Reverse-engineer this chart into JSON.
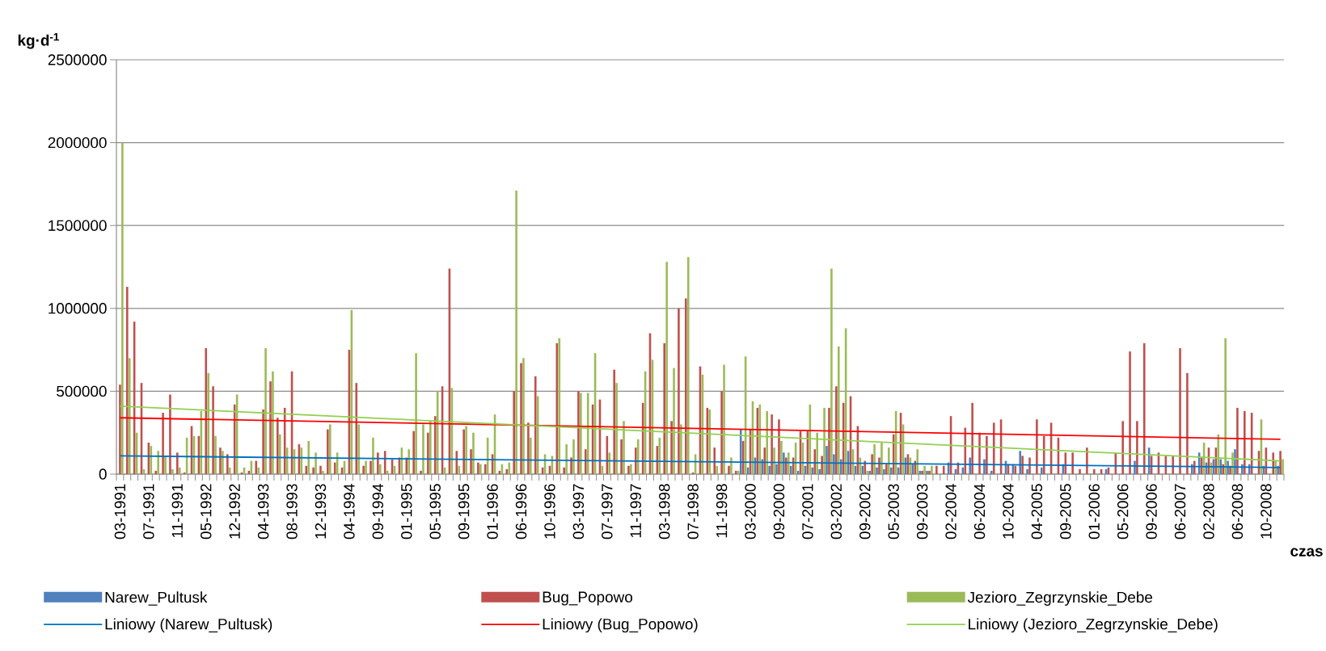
{
  "chart_data": {
    "type": "bar",
    "ylabel": "kg·d$^{-1}$",
    "xlabel": "czas",
    "categories": [
      "03-1991",
      null,
      null,
      null,
      "07-1991",
      null,
      null,
      null,
      "11-1991",
      null,
      null,
      null,
      "05-1992",
      null,
      null,
      null,
      "12-1992",
      null,
      null,
      null,
      "04-1993",
      null,
      null,
      null,
      "08-1993",
      null,
      null,
      null,
      "12-1993",
      null,
      null,
      null,
      "04-1994",
      null,
      null,
      null,
      "09-1994",
      null,
      null,
      null,
      "01-1995",
      null,
      null,
      null,
      "05-1995",
      null,
      null,
      null,
      "09-1995",
      null,
      null,
      null,
      "01-1996",
      null,
      null,
      null,
      "06-1996",
      null,
      null,
      null,
      "10-1996",
      null,
      null,
      null,
      "03-1997",
      null,
      null,
      null,
      "07-1997",
      null,
      null,
      null,
      "11-1997",
      null,
      null,
      null,
      "03-1998",
      null,
      null,
      null,
      "07-1998",
      null,
      null,
      null,
      "11-1998",
      null,
      null,
      null,
      "03-2000",
      null,
      null,
      null,
      "09-2000",
      null,
      null,
      null,
      "07-2001",
      null,
      null,
      null,
      "03-2002",
      null,
      null,
      null,
      "09-2002",
      null,
      null,
      null,
      "05-2003",
      null,
      null,
      null,
      "09-2003",
      null,
      null,
      null,
      "02-2004",
      null,
      null,
      null,
      "06-2004",
      null,
      null,
      null,
      "10-2004",
      null,
      null,
      null,
      "04-2005",
      null,
      null,
      null,
      "09-2005",
      null,
      null,
      null,
      "01-2006",
      null,
      null,
      null,
      "05-2006",
      null,
      null,
      null,
      "09-2006",
      null,
      null,
      null,
      "06-2007",
      null,
      null,
      null,
      "02-2008",
      null,
      null,
      null,
      "06-2008",
      null,
      null,
      null,
      "10-2008",
      null,
      null
    ],
    "series": [
      {
        "name": "Narew_Pultusk",
        "color": "#4f81bd",
        "values": [
          null,
          null,
          null,
          null,
          null,
          null,
          null,
          null,
          null,
          null,
          null,
          null,
          null,
          null,
          null,
          null,
          null,
          null,
          null,
          null,
          null,
          null,
          null,
          null,
          null,
          null,
          null,
          null,
          null,
          null,
          null,
          null,
          null,
          null,
          null,
          null,
          null,
          null,
          null,
          null,
          null,
          null,
          null,
          null,
          null,
          null,
          null,
          null,
          null,
          null,
          null,
          null,
          null,
          null,
          null,
          null,
          null,
          null,
          null,
          null,
          null,
          null,
          null,
          null,
          null,
          null,
          null,
          null,
          null,
          null,
          null,
          null,
          null,
          null,
          null,
          null,
          null,
          null,
          null,
          null,
          null,
          null,
          null,
          null,
          null,
          null,
          null,
          270000,
          40000,
          100000,
          90000,
          50000,
          60000,
          130000,
          50000,
          20000,
          50000,
          40000,
          30000,
          170000,
          120000,
          90000,
          140000,
          50000,
          50000,
          20000,
          40000,
          30000,
          40000,
          40000,
          100000,
          60000,
          20000,
          20000,
          null,
          null,
          70000,
          30000,
          40000,
          100000,
          null,
          90000,
          20000,
          null,
          80000,
          60000,
          140000,
          30000,
          null,
          40000,
          null,
          null,
          60000,
          null,
          null,
          null,
          null,
          null,
          30000,
          null,
          null,
          null,
          80000,
          null,
          160000,
          null,
          null,
          null,
          null,
          null,
          60000,
          130000,
          70000,
          90000,
          90000,
          80000,
          150000,
          60000,
          60000,
          null,
          50000,
          null,
          50000
        ]
      },
      {
        "name": "Bug_Popowo",
        "color": "#c0504d",
        "values": [
          540000,
          1130000,
          920000,
          550000,
          190000,
          20000,
          370000,
          480000,
          130000,
          10000,
          290000,
          230000,
          760000,
          530000,
          160000,
          120000,
          420000,
          10000,
          20000,
          80000,
          390000,
          560000,
          340000,
          400000,
          620000,
          180000,
          50000,
          40000,
          50000,
          270000,
          70000,
          40000,
          750000,
          550000,
          50000,
          80000,
          130000,
          140000,
          90000,
          100000,
          100000,
          260000,
          20000,
          250000,
          350000,
          530000,
          1240000,
          140000,
          270000,
          150000,
          70000,
          60000,
          120000,
          20000,
          30000,
          500000,
          670000,
          310000,
          590000,
          40000,
          50000,
          790000,
          40000,
          100000,
          500000,
          150000,
          420000,
          450000,
          230000,
          630000,
          210000,
          50000,
          160000,
          430000,
          850000,
          170000,
          790000,
          320000,
          1000000,
          1060000,
          10000,
          650000,
          400000,
          160000,
          500000,
          50000,
          20000,
          200000,
          270000,
          400000,
          160000,
          360000,
          330000,
          100000,
          100000,
          260000,
          260000,
          150000,
          110000,
          400000,
          530000,
          430000,
          470000,
          290000,
          80000,
          120000,
          100000,
          60000,
          240000,
          370000,
          120000,
          80000,
          20000,
          20000,
          50000,
          50000,
          350000,
          70000,
          280000,
          430000,
          250000,
          230000,
          310000,
          330000,
          60000,
          50000,
          110000,
          100000,
          330000,
          230000,
          310000,
          220000,
          130000,
          130000,
          30000,
          160000,
          30000,
          30000,
          40000,
          130000,
          320000,
          740000,
          320000,
          790000,
          110000,
          130000,
          110000,
          110000,
          760000,
          610000,
          80000,
          100000,
          160000,
          160000,
          60000,
          50000,
          400000,
          380000,
          370000,
          140000,
          160000,
          130000,
          140000
        ]
      },
      {
        "name": "Jezioro_Zegrzynskie_Debe",
        "color": "#9bbb59",
        "values": [
          2000000,
          700000,
          250000,
          30000,
          170000,
          140000,
          110000,
          30000,
          40000,
          220000,
          230000,
          380000,
          610000,
          230000,
          140000,
          40000,
          480000,
          40000,
          80000,
          40000,
          760000,
          620000,
          240000,
          160000,
          150000,
          160000,
          200000,
          130000,
          20000,
          300000,
          130000,
          80000,
          990000,
          300000,
          80000,
          220000,
          60000,
          20000,
          50000,
          160000,
          150000,
          730000,
          300000,
          320000,
          500000,
          40000,
          520000,
          50000,
          290000,
          250000,
          60000,
          220000,
          360000,
          60000,
          70000,
          1710000,
          700000,
          220000,
          470000,
          120000,
          110000,
          820000,
          180000,
          210000,
          490000,
          490000,
          730000,
          50000,
          130000,
          550000,
          320000,
          60000,
          210000,
          620000,
          690000,
          220000,
          1280000,
          640000,
          300000,
          1310000,
          120000,
          600000,
          390000,
          50000,
          660000,
          100000,
          20000,
          710000,
          440000,
          420000,
          380000,
          160000,
          200000,
          130000,
          190000,
          190000,
          420000,
          250000,
          400000,
          1240000,
          770000,
          880000,
          150000,
          100000,
          20000,
          180000,
          190000,
          160000,
          380000,
          300000,
          100000,
          150000,
          50000,
          50000,
          null,
          null,
          null,
          null,
          null,
          null,
          null,
          null,
          null,
          null,
          null,
          null,
          null,
          null,
          null,
          null,
          null,
          null,
          null,
          null,
          null,
          null,
          null,
          null,
          null,
          null,
          null,
          null,
          null,
          null,
          null,
          null,
          null,
          null,
          null,
          null,
          null,
          190000,
          70000,
          240000,
          820000,
          130000,
          null,
          null,
          null,
          330000,
          null,
          80000,
          90000
        ]
      },
      {
        "name": "Liniowy (Narew_Pultusk)",
        "type": "line",
        "color": "#0070c0",
        "values": [
          110000,
          null,
          null,
          null,
          null,
          null,
          null,
          null,
          null,
          null,
          null,
          null,
          null,
          null,
          null,
          null,
          null,
          null,
          null,
          null,
          null,
          null,
          null,
          null,
          null,
          null,
          null,
          null,
          null,
          null,
          null,
          null,
          null,
          null,
          null,
          null,
          null,
          null,
          null,
          null,
          null,
          null,
          null,
          null,
          null,
          null,
          null,
          null,
          null,
          null,
          null,
          null,
          null,
          null,
          null,
          null,
          null,
          null,
          null,
          null,
          null,
          null,
          null,
          null,
          null,
          null,
          null,
          null,
          null,
          null,
          null,
          null,
          null,
          null,
          null,
          null,
          null,
          null,
          null,
          null,
          null,
          null,
          null,
          null,
          null,
          null,
          null,
          null,
          null,
          null,
          null,
          null,
          null,
          null,
          null,
          null,
          null,
          null,
          null,
          null,
          null,
          null,
          null,
          null,
          null,
          null,
          null,
          null,
          null,
          null,
          null,
          null,
          null,
          null,
          null,
          null,
          null,
          null,
          null,
          null,
          null,
          null,
          null,
          null,
          null,
          null,
          null,
          null,
          null,
          null,
          null,
          null,
          null,
          null,
          null,
          null,
          null,
          null,
          null,
          null,
          null,
          null,
          null,
          null,
          null,
          null,
          null,
          null,
          null,
          null,
          null,
          null,
          null,
          null,
          null,
          null,
          null,
          null,
          null,
          null,
          null,
          null,
          40000
        ]
      },
      {
        "name": "Liniowy (Bug_Popowo)",
        "type": "line",
        "color": "#ff0000",
        "values": [
          340000,
          null,
          null,
          null,
          null,
          null,
          null,
          null,
          null,
          null,
          null,
          null,
          null,
          null,
          null,
          null,
          null,
          null,
          null,
          null,
          null,
          null,
          null,
          null,
          null,
          null,
          null,
          null,
          null,
          null,
          null,
          null,
          null,
          null,
          null,
          null,
          null,
          null,
          null,
          null,
          null,
          null,
          null,
          null,
          null,
          null,
          null,
          null,
          null,
          null,
          null,
          null,
          null,
          null,
          null,
          null,
          null,
          null,
          null,
          null,
          null,
          null,
          null,
          null,
          null,
          null,
          null,
          null,
          null,
          null,
          null,
          null,
          null,
          null,
          null,
          null,
          null,
          null,
          null,
          null,
          null,
          null,
          null,
          null,
          null,
          null,
          null,
          null,
          null,
          null,
          null,
          null,
          null,
          null,
          null,
          null,
          null,
          null,
          null,
          null,
          null,
          null,
          null,
          null,
          null,
          null,
          null,
          null,
          null,
          null,
          null,
          null,
          null,
          null,
          null,
          null,
          null,
          null,
          null,
          null,
          null,
          null,
          null,
          null,
          null,
          null,
          null,
          null,
          null,
          null,
          null,
          null,
          null,
          null,
          null,
          null,
          null,
          null,
          null,
          null,
          null,
          null,
          null,
          null,
          null,
          null,
          null,
          null,
          null,
          null,
          null,
          null,
          null,
          null,
          null,
          null,
          null,
          null,
          null,
          null,
          null,
          null,
          210000
        ]
      },
      {
        "name": "Liniowy (Jezioro_Zegrzynskie_Debe)",
        "type": "line",
        "color": "#92d050",
        "values": [
          410000,
          null,
          null,
          null,
          null,
          null,
          null,
          null,
          null,
          null,
          null,
          null,
          null,
          null,
          null,
          null,
          null,
          null,
          null,
          null,
          null,
          null,
          null,
          null,
          null,
          null,
          null,
          null,
          null,
          null,
          null,
          null,
          null,
          null,
          null,
          null,
          null,
          null,
          null,
          null,
          null,
          null,
          null,
          null,
          null,
          null,
          null,
          null,
          null,
          null,
          null,
          null,
          null,
          null,
          null,
          null,
          null,
          null,
          null,
          null,
          null,
          null,
          null,
          null,
          null,
          null,
          null,
          null,
          null,
          null,
          null,
          null,
          null,
          null,
          null,
          null,
          null,
          null,
          null,
          null,
          null,
          null,
          null,
          null,
          null,
          null,
          null,
          null,
          null,
          null,
          null,
          null,
          null,
          null,
          null,
          null,
          null,
          null,
          null,
          null,
          null,
          null,
          null,
          null,
          null,
          null,
          null,
          null,
          null,
          null,
          null,
          null,
          null,
          null,
          null,
          null,
          null,
          null,
          null,
          null,
          null,
          null,
          null,
          null,
          null,
          null,
          null,
          null,
          null,
          null,
          null,
          null,
          null,
          null,
          null,
          null,
          null,
          null,
          null,
          null,
          null,
          null,
          null,
          null,
          null,
          null,
          null,
          null,
          null,
          null,
          null,
          null,
          null,
          null,
          null,
          null,
          null,
          null,
          null,
          null,
          null,
          null,
          80000
        ]
      }
    ],
    "ylim": [
      0,
      2500000
    ],
    "yticks": [
      0,
      500000,
      1000000,
      1500000,
      2000000,
      2500000
    ],
    "grid": "y",
    "legend": "bottom"
  }
}
